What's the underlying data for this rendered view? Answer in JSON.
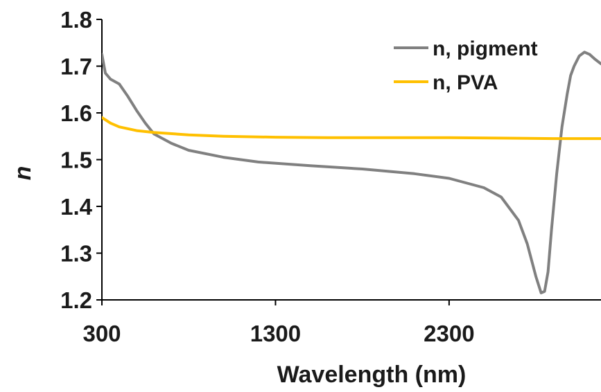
{
  "chart_data": {
    "type": "line",
    "title": "",
    "xlabel": "Wavelength (nm)",
    "ylabel": "n",
    "xlim": [
      300,
      3175
    ],
    "ylim": [
      1.2,
      1.8
    ],
    "xticks": [
      300,
      1300,
      2300
    ],
    "xtick_labels": [
      "300",
      "1300",
      "2300"
    ],
    "yticks": [
      1.2,
      1.3,
      1.4,
      1.5,
      1.6,
      1.7,
      1.8
    ],
    "ytick_labels": [
      "1.2",
      "1.3",
      "1.4",
      "1.5",
      "1.6",
      "1.7",
      "1.8"
    ],
    "grid": false,
    "legend_position": "top-right",
    "series": [
      {
        "name": "n, pigment",
        "color": "#808080",
        "x": [
          300,
          320,
          350,
          400,
          450,
          500,
          550,
          600,
          700,
          800,
          1000,
          1200,
          1500,
          1800,
          2100,
          2300,
          2500,
          2600,
          2700,
          2750,
          2800,
          2830,
          2850,
          2870,
          2890,
          2920,
          2950,
          2980,
          3000,
          3020,
          3050,
          3080,
          3110,
          3140,
          3175
        ],
        "y": [
          1.725,
          1.685,
          1.672,
          1.662,
          1.635,
          1.605,
          1.578,
          1.555,
          1.535,
          1.52,
          1.505,
          1.495,
          1.487,
          1.48,
          1.47,
          1.46,
          1.44,
          1.42,
          1.37,
          1.32,
          1.25,
          1.215,
          1.218,
          1.26,
          1.35,
          1.47,
          1.57,
          1.64,
          1.68,
          1.7,
          1.722,
          1.73,
          1.725,
          1.715,
          1.705
        ]
      },
      {
        "name": "n, PVA",
        "color": "#FFC000",
        "x": [
          300,
          350,
          400,
          500,
          600,
          800,
          1000,
          1300,
          1600,
          2000,
          2300,
          2600,
          2900,
          3175
        ],
        "y": [
          1.59,
          1.578,
          1.57,
          1.562,
          1.558,
          1.553,
          1.55,
          1.548,
          1.547,
          1.547,
          1.547,
          1.546,
          1.545,
          1.545
        ]
      }
    ]
  }
}
